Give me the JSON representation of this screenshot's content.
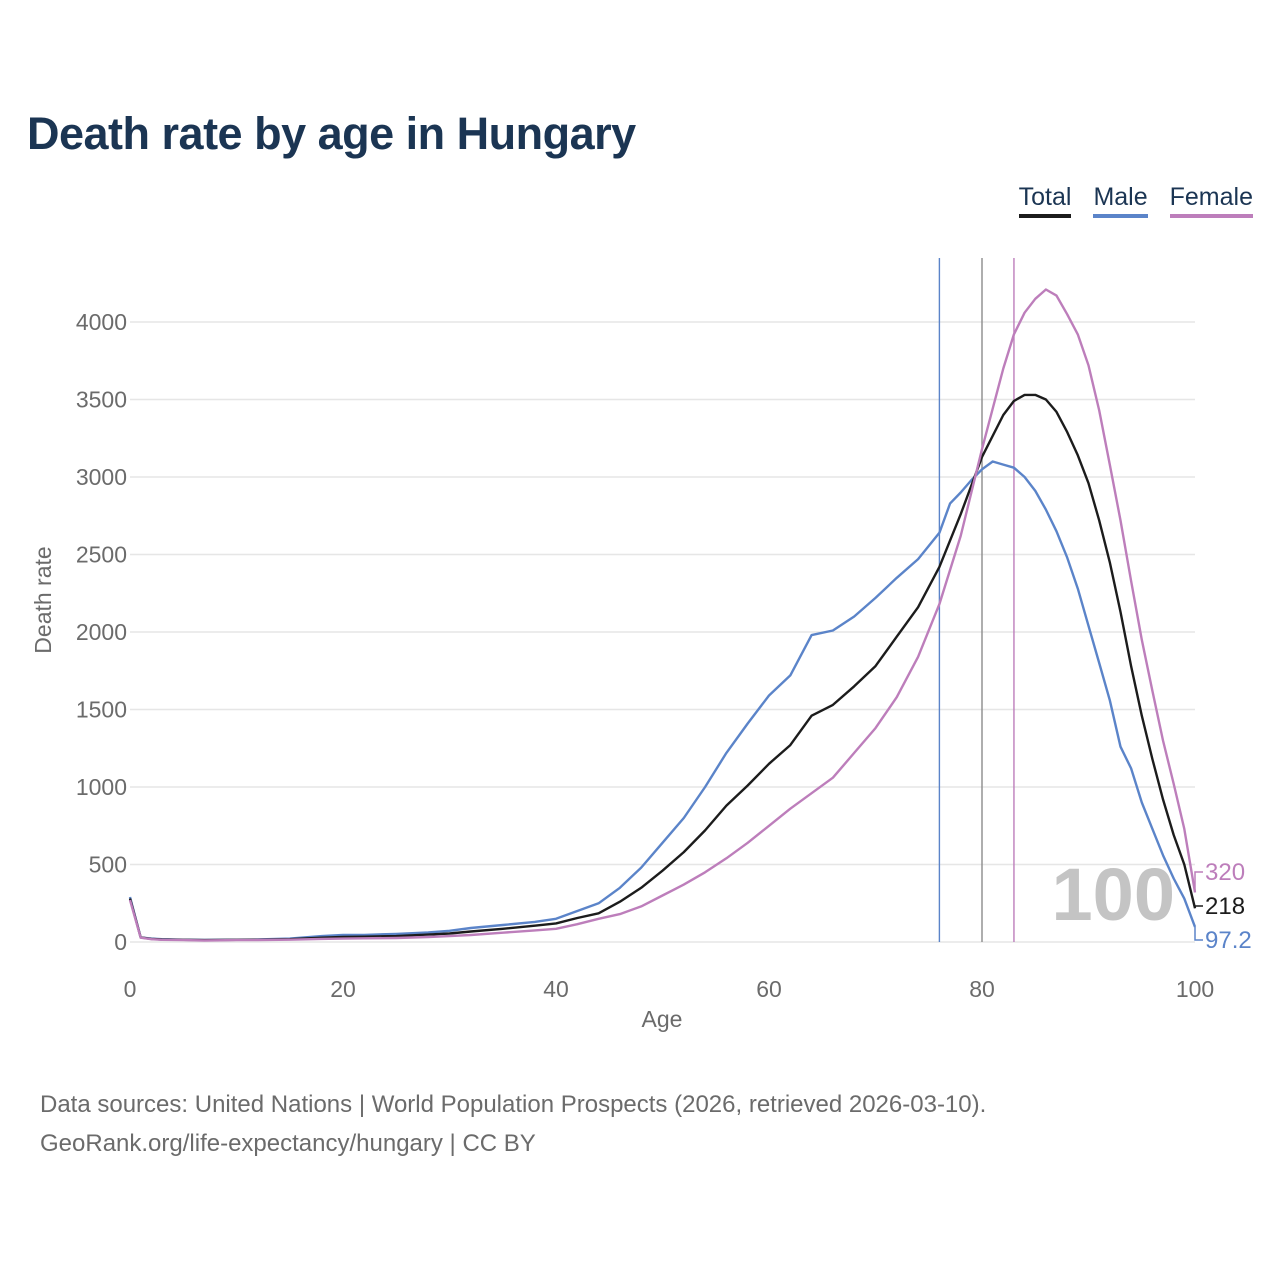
{
  "colors": {
    "title": "#1b3553",
    "total": "#1c1c1c",
    "male": "#5b84c9",
    "female": "#bd7ebb",
    "grid": "#e6e6e6",
    "axis_text": "#6b6b6b",
    "year_watermark": "#c4c4c4"
  },
  "footer": {
    "sources": "Data sources: United Nations | World Population Prospects (2026, retrieved 2026-03-10).",
    "credit": "GeoRank.org/life-expectancy/hungary | CC BY"
  },
  "chart_data": {
    "type": "line",
    "title": "Death rate by age in Hungary",
    "xlabel": "Age",
    "ylabel": "Death rate",
    "xlim": [
      0,
      100
    ],
    "ylim": [
      0,
      4350
    ],
    "x_ticks": [
      0,
      20,
      40,
      60,
      80,
      100
    ],
    "y_ticks": [
      0,
      500,
      1000,
      1500,
      2000,
      2500,
      3000,
      3500,
      4000
    ],
    "grid": true,
    "legend_position": "top-right",
    "year_label": "100",
    "series": [
      {
        "name": "Total",
        "end_label": "218",
        "life_expectancy_marker": 80,
        "points": [
          [
            0,
            280
          ],
          [
            1,
            30
          ],
          [
            2,
            20
          ],
          [
            3,
            16
          ],
          [
            5,
            14
          ],
          [
            7,
            12
          ],
          [
            10,
            14
          ],
          [
            12,
            15
          ],
          [
            15,
            18
          ],
          [
            18,
            28
          ],
          [
            20,
            32
          ],
          [
            22,
            34
          ],
          [
            25,
            38
          ],
          [
            28,
            48
          ],
          [
            30,
            55
          ],
          [
            32,
            68
          ],
          [
            35,
            85
          ],
          [
            38,
            105
          ],
          [
            40,
            120
          ],
          [
            42,
            155
          ],
          [
            44,
            185
          ],
          [
            46,
            260
          ],
          [
            48,
            350
          ],
          [
            50,
            460
          ],
          [
            52,
            580
          ],
          [
            54,
            720
          ],
          [
            56,
            880
          ],
          [
            58,
            1010
          ],
          [
            60,
            1150
          ],
          [
            62,
            1270
          ],
          [
            64,
            1460
          ],
          [
            66,
            1530
          ],
          [
            68,
            1650
          ],
          [
            70,
            1780
          ],
          [
            72,
            1970
          ],
          [
            74,
            2160
          ],
          [
            76,
            2420
          ],
          [
            78,
            2760
          ],
          [
            80,
            3130
          ],
          [
            82,
            3400
          ],
          [
            83,
            3490
          ],
          [
            84,
            3530
          ],
          [
            85,
            3530
          ],
          [
            86,
            3500
          ],
          [
            87,
            3420
          ],
          [
            88,
            3290
          ],
          [
            89,
            3140
          ],
          [
            90,
            2960
          ],
          [
            91,
            2720
          ],
          [
            92,
            2450
          ],
          [
            93,
            2130
          ],
          [
            94,
            1780
          ],
          [
            95,
            1460
          ],
          [
            96,
            1180
          ],
          [
            97,
            920
          ],
          [
            98,
            690
          ],
          [
            99,
            500
          ],
          [
            100,
            218
          ]
        ]
      },
      {
        "name": "Male",
        "end_label": "97.2",
        "life_expectancy_marker": 76,
        "points": [
          [
            0,
            290
          ],
          [
            1,
            30
          ],
          [
            2,
            22
          ],
          [
            3,
            18
          ],
          [
            5,
            15
          ],
          [
            7,
            13
          ],
          [
            10,
            15
          ],
          [
            12,
            16
          ],
          [
            15,
            22
          ],
          [
            18,
            38
          ],
          [
            20,
            45
          ],
          [
            22,
            46
          ],
          [
            25,
            52
          ],
          [
            28,
            62
          ],
          [
            30,
            72
          ],
          [
            32,
            90
          ],
          [
            35,
            110
          ],
          [
            38,
            130
          ],
          [
            40,
            150
          ],
          [
            42,
            200
          ],
          [
            44,
            250
          ],
          [
            46,
            350
          ],
          [
            48,
            480
          ],
          [
            50,
            640
          ],
          [
            52,
            800
          ],
          [
            54,
            1000
          ],
          [
            56,
            1220
          ],
          [
            58,
            1410
          ],
          [
            60,
            1590
          ],
          [
            62,
            1720
          ],
          [
            64,
            1980
          ],
          [
            66,
            2010
          ],
          [
            68,
            2100
          ],
          [
            70,
            2220
          ],
          [
            72,
            2350
          ],
          [
            74,
            2470
          ],
          [
            76,
            2640
          ],
          [
            77,
            2830
          ],
          [
            78,
            2900
          ],
          [
            79,
            2980
          ],
          [
            80,
            3050
          ],
          [
            81,
            3100
          ],
          [
            82,
            3080
          ],
          [
            83,
            3060
          ],
          [
            84,
            3000
          ],
          [
            85,
            2910
          ],
          [
            86,
            2790
          ],
          [
            87,
            2650
          ],
          [
            88,
            2480
          ],
          [
            89,
            2280
          ],
          [
            90,
            2040
          ],
          [
            91,
            1800
          ],
          [
            92,
            1560
          ],
          [
            93,
            1260
          ],
          [
            94,
            1120
          ],
          [
            95,
            900
          ],
          [
            96,
            730
          ],
          [
            97,
            560
          ],
          [
            98,
            410
          ],
          [
            99,
            280
          ],
          [
            100,
            97.2
          ]
        ]
      },
      {
        "name": "Female",
        "end_label": "320",
        "life_expectancy_marker": 83,
        "points": [
          [
            0,
            270
          ],
          [
            1,
            28
          ],
          [
            2,
            18
          ],
          [
            3,
            14
          ],
          [
            5,
            12
          ],
          [
            7,
            10
          ],
          [
            10,
            12
          ],
          [
            12,
            13
          ],
          [
            15,
            15
          ],
          [
            18,
            20
          ],
          [
            20,
            22
          ],
          [
            22,
            24
          ],
          [
            25,
            26
          ],
          [
            28,
            32
          ],
          [
            30,
            38
          ],
          [
            32,
            45
          ],
          [
            35,
            60
          ],
          [
            38,
            75
          ],
          [
            40,
            85
          ],
          [
            42,
            115
          ],
          [
            44,
            150
          ],
          [
            46,
            180
          ],
          [
            48,
            230
          ],
          [
            50,
            300
          ],
          [
            52,
            370
          ],
          [
            54,
            450
          ],
          [
            56,
            540
          ],
          [
            58,
            640
          ],
          [
            60,
            750
          ],
          [
            62,
            860
          ],
          [
            64,
            960
          ],
          [
            66,
            1060
          ],
          [
            68,
            1220
          ],
          [
            70,
            1380
          ],
          [
            72,
            1580
          ],
          [
            74,
            1840
          ],
          [
            76,
            2180
          ],
          [
            78,
            2620
          ],
          [
            80,
            3180
          ],
          [
            82,
            3700
          ],
          [
            83,
            3920
          ],
          [
            84,
            4060
          ],
          [
            85,
            4150
          ],
          [
            86,
            4210
          ],
          [
            87,
            4170
          ],
          [
            88,
            4050
          ],
          [
            89,
            3920
          ],
          [
            90,
            3720
          ],
          [
            91,
            3430
          ],
          [
            92,
            3080
          ],
          [
            93,
            2720
          ],
          [
            94,
            2330
          ],
          [
            95,
            1950
          ],
          [
            96,
            1620
          ],
          [
            97,
            1300
          ],
          [
            98,
            1020
          ],
          [
            99,
            730
          ],
          [
            100,
            320
          ]
        ]
      }
    ]
  }
}
